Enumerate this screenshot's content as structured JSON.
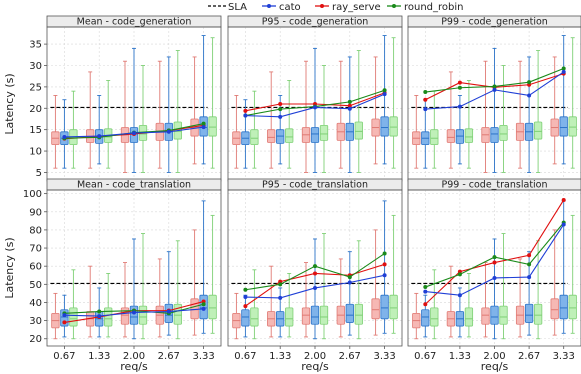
{
  "legend": [
    {
      "key": "sla",
      "label": "SLA",
      "color": "#000000",
      "dash": true
    },
    {
      "key": "cato",
      "label": "cato",
      "color": "#1f3fd6"
    },
    {
      "key": "ray_serve",
      "label": "ray_serve",
      "color": "#e01010"
    },
    {
      "key": "round_robin",
      "label": "round_robin",
      "color": "#1a8a1a"
    }
  ],
  "box_colors": {
    "ray_serve": {
      "fill": "#f6b8b4",
      "stroke": "#e07a74"
    },
    "cato": {
      "fill": "#7fb3ea",
      "stroke": "#2b73c8"
    },
    "round_robin": {
      "fill": "#bff0b8",
      "stroke": "#7fd076"
    }
  },
  "chart_data": [
    {
      "type": "line",
      "title": "Mean - code_generation",
      "ylabel": "Latency (s)",
      "xlabel": "",
      "ylim": [
        3,
        39
      ],
      "yticks": [
        5,
        10,
        15,
        20,
        25,
        30,
        35
      ],
      "categories": [
        "0.67",
        "1.33",
        "2.00",
        "2.67",
        "3.33"
      ],
      "sla": 20.2,
      "series": [
        {
          "name": "cato",
          "values": [
            13.3,
            13.5,
            14.2,
            14.5,
            15.6
          ]
        },
        {
          "name": "ray_serve",
          "values": [
            12.9,
            13.4,
            14.0,
            14.8,
            16.0
          ]
        },
        {
          "name": "round_robin",
          "values": [
            13.0,
            13.2,
            14.3,
            14.8,
            16.4
          ]
        }
      ],
      "boxes": {
        "ray_serve": [
          [
            6,
            11.5,
            13,
            14.5,
            23
          ],
          [
            6,
            12,
            13.2,
            15,
            28.5
          ],
          [
            5,
            12,
            13.8,
            15.5,
            31
          ],
          [
            6,
            12.5,
            14.5,
            16.5,
            31
          ],
          [
            7,
            13.5,
            15.5,
            17.5,
            32
          ]
        ],
        "cato": [
          [
            6,
            11.5,
            13,
            14.5,
            22
          ],
          [
            7,
            11.8,
            13.5,
            15,
            23
          ],
          [
            5,
            12,
            14,
            15.5,
            34
          ],
          [
            5,
            12.5,
            14.5,
            16.5,
            32
          ],
          [
            7,
            13.5,
            15.5,
            18,
            37
          ]
        ],
        "round_robin": [
          [
            6,
            11.5,
            13,
            15,
            24
          ],
          [
            6,
            12,
            13.3,
            15.2,
            26.5
          ],
          [
            5,
            12.5,
            14,
            16,
            30
          ],
          [
            5,
            12.8,
            14.6,
            16.8,
            33.5
          ],
          [
            6,
            13.5,
            15.6,
            18,
            36.5
          ]
        ]
      }
    },
    {
      "type": "line",
      "title": "P95 - code_generation",
      "ylabel": "",
      "xlabel": "",
      "ylim": [
        3,
        39
      ],
      "yticks": [
        5,
        10,
        15,
        20,
        25,
        30,
        35
      ],
      "categories": [
        "0.67",
        "1.33",
        "2.00",
        "2.67",
        "3.33"
      ],
      "sla": 20.2,
      "series": [
        {
          "name": "cato",
          "values": [
            18.3,
            18.0,
            20.2,
            19.9,
            23.3
          ]
        },
        {
          "name": "ray_serve",
          "values": [
            19.4,
            21.0,
            21.0,
            20.6,
            23.6
          ]
        },
        {
          "name": "round_robin",
          "values": [
            18.3,
            19.8,
            20.4,
            21.5,
            24.2
          ]
        }
      ],
      "boxes": {
        "ray_serve": [
          [
            6,
            11.5,
            13,
            14.5,
            23
          ],
          [
            6,
            12,
            13.2,
            15,
            28.5
          ],
          [
            5,
            12,
            13.8,
            15.5,
            31
          ],
          [
            6,
            12.5,
            14.5,
            16.5,
            31
          ],
          [
            7,
            13.5,
            15.5,
            17.5,
            32
          ]
        ],
        "cato": [
          [
            6,
            11.5,
            13,
            14.5,
            22
          ],
          [
            7,
            11.8,
            13.5,
            15,
            23
          ],
          [
            5,
            12,
            14,
            15.5,
            34
          ],
          [
            5,
            12.5,
            14.5,
            16.5,
            32
          ],
          [
            7,
            13.5,
            15.5,
            18,
            37
          ]
        ],
        "round_robin": [
          [
            6,
            11.5,
            13,
            15,
            24
          ],
          [
            6,
            12,
            13.3,
            15.2,
            26.5
          ],
          [
            5,
            12.5,
            14,
            16,
            30
          ],
          [
            5,
            12.8,
            14.6,
            16.8,
            33.5
          ],
          [
            6,
            13.5,
            15.6,
            18,
            36.5
          ]
        ]
      }
    },
    {
      "type": "line",
      "title": "P99 - code_generation",
      "ylabel": "",
      "xlabel": "",
      "ylim": [
        3,
        39
      ],
      "yticks": [
        5,
        10,
        15,
        20,
        25,
        30,
        35
      ],
      "categories": [
        "0.67",
        "1.33",
        "2.00",
        "2.67",
        "3.33"
      ],
      "sla": 20.2,
      "series": [
        {
          "name": "cato",
          "values": [
            19.8,
            20.4,
            24.3,
            23.0,
            28.5
          ]
        },
        {
          "name": "ray_serve",
          "values": [
            22.0,
            26.0,
            24.9,
            25.5,
            28.1
          ]
        },
        {
          "name": "round_robin",
          "values": [
            23.8,
            24.8,
            25.1,
            26.1,
            29.3
          ]
        }
      ],
      "boxes": {
        "ray_serve": [
          [
            6,
            11.5,
            13,
            14.5,
            23
          ],
          [
            6,
            12,
            13.2,
            15,
            28.5
          ],
          [
            5,
            12,
            13.8,
            15.5,
            31
          ],
          [
            6,
            12.5,
            14.5,
            16.5,
            31
          ],
          [
            7,
            13.5,
            15.5,
            17.5,
            32
          ]
        ],
        "cato": [
          [
            6,
            11.5,
            13,
            14.5,
            22
          ],
          [
            7,
            11.8,
            13.5,
            15,
            23
          ],
          [
            5,
            12,
            14,
            15.5,
            34
          ],
          [
            5,
            12.5,
            14.5,
            16.5,
            32
          ],
          [
            7,
            13.5,
            15.5,
            18,
            37
          ]
        ],
        "round_robin": [
          [
            6,
            11.5,
            13,
            15,
            24
          ],
          [
            6,
            12,
            13.3,
            15.2,
            26.5
          ],
          [
            5,
            12.5,
            14,
            16,
            30
          ],
          [
            5,
            12.8,
            14.6,
            16.8,
            33.5
          ],
          [
            6,
            13.5,
            15.6,
            18,
            36.5
          ]
        ]
      }
    },
    {
      "type": "line",
      "title": "Mean - code_translation",
      "ylabel": "Latency (s)",
      "xlabel": "req/s",
      "ylim": [
        16,
        102
      ],
      "yticks": [
        20,
        30,
        40,
        50,
        60,
        70,
        80,
        90,
        100
      ],
      "categories": [
        "0.67",
        "1.33",
        "2.00",
        "2.67",
        "3.33"
      ],
      "sla": 50.5,
      "series": [
        {
          "name": "cato",
          "values": [
            33.0,
            32.5,
            34.5,
            35.0,
            36.5
          ]
        },
        {
          "name": "ray_serve",
          "values": [
            29.0,
            32.0,
            35.5,
            35.5,
            40.5
          ]
        },
        {
          "name": "round_robin",
          "values": [
            34.0,
            35.0,
            35.5,
            34.0,
            39.0
          ]
        }
      ],
      "boxes": {
        "ray_serve": [
          [
            20,
            26,
            30,
            34,
            45
          ],
          [
            21,
            27,
            31,
            35,
            60
          ],
          [
            21,
            28,
            33,
            37,
            62
          ],
          [
            21,
            28,
            33,
            38,
            64
          ],
          [
            22,
            31,
            36,
            42,
            80
          ]
        ],
        "cato": [
          [
            21,
            27,
            32,
            36,
            44
          ],
          [
            21,
            27,
            31,
            35,
            48
          ],
          [
            20,
            28,
            32,
            38,
            75
          ],
          [
            22,
            29,
            33,
            39,
            68
          ],
          [
            23,
            31,
            37,
            44,
            96
          ]
        ],
        "round_robin": [
          [
            20,
            27,
            31,
            37,
            58
          ],
          [
            21,
            27,
            31,
            37,
            56
          ],
          [
            20,
            28,
            32,
            38,
            78
          ],
          [
            20,
            28,
            33,
            39,
            74
          ],
          [
            23,
            31,
            37,
            44,
            88
          ]
        ]
      }
    },
    {
      "type": "line",
      "title": "P95 - code_translation",
      "ylabel": "",
      "xlabel": "req/s",
      "ylim": [
        16,
        102
      ],
      "yticks": [
        20,
        30,
        40,
        50,
        60,
        70,
        80,
        90,
        100
      ],
      "categories": [
        "0.67",
        "1.33",
        "2.00",
        "2.67",
        "3.33"
      ],
      "sla": 50.5,
      "series": [
        {
          "name": "cato",
          "values": [
            43.0,
            42.5,
            48.0,
            51.0,
            55.0
          ]
        },
        {
          "name": "ray_serve",
          "values": [
            38.0,
            51.5,
            56.0,
            55.0,
            61.0
          ]
        },
        {
          "name": "round_robin",
          "values": [
            47.0,
            50.0,
            60.0,
            54.0,
            67.0
          ]
        }
      ],
      "boxes": {
        "ray_serve": [
          [
            20,
            26,
            30,
            34,
            45
          ],
          [
            21,
            27,
            31,
            35,
            60
          ],
          [
            21,
            28,
            33,
            37,
            62
          ],
          [
            21,
            28,
            33,
            38,
            64
          ],
          [
            22,
            31,
            36,
            42,
            80
          ]
        ],
        "cato": [
          [
            21,
            27,
            32,
            36,
            44
          ],
          [
            21,
            27,
            31,
            35,
            48
          ],
          [
            20,
            28,
            32,
            38,
            75
          ],
          [
            22,
            29,
            33,
            39,
            68
          ],
          [
            23,
            31,
            37,
            44,
            96
          ]
        ],
        "round_robin": [
          [
            20,
            27,
            31,
            37,
            58
          ],
          [
            21,
            27,
            31,
            37,
            56
          ],
          [
            20,
            28,
            32,
            38,
            78
          ],
          [
            20,
            28,
            33,
            39,
            74
          ],
          [
            23,
            31,
            37,
            44,
            88
          ]
        ]
      }
    },
    {
      "type": "line",
      "title": "P99 - code_translation",
      "ylabel": "",
      "xlabel": "req/s",
      "ylim": [
        16,
        102
      ],
      "yticks": [
        20,
        30,
        40,
        50,
        60,
        70,
        80,
        90,
        100
      ],
      "categories": [
        "0.67",
        "1.33",
        "2.00",
        "2.67",
        "3.33"
      ],
      "sla": 50.5,
      "series": [
        {
          "name": "cato",
          "values": [
            46.0,
            44.0,
            53.5,
            54.0,
            83.0
          ]
        },
        {
          "name": "ray_serve",
          "values": [
            39.0,
            57.0,
            62.0,
            66.0,
            96.5
          ]
        },
        {
          "name": "round_robin",
          "values": [
            48.5,
            55.5,
            65.0,
            61.0,
            84.0
          ]
        }
      ],
      "boxes": {
        "ray_serve": [
          [
            20,
            26,
            30,
            34,
            45
          ],
          [
            21,
            27,
            31,
            35,
            60
          ],
          [
            21,
            28,
            33,
            37,
            62
          ],
          [
            21,
            28,
            33,
            38,
            64
          ],
          [
            22,
            31,
            36,
            42,
            80
          ]
        ],
        "cato": [
          [
            21,
            27,
            32,
            36,
            44
          ],
          [
            21,
            27,
            31,
            35,
            48
          ],
          [
            20,
            28,
            32,
            38,
            75
          ],
          [
            22,
            29,
            33,
            39,
            68
          ],
          [
            23,
            31,
            37,
            44,
            96
          ]
        ],
        "round_robin": [
          [
            20,
            27,
            31,
            37,
            58
          ],
          [
            21,
            27,
            31,
            37,
            56
          ],
          [
            20,
            28,
            32,
            38,
            78
          ],
          [
            20,
            28,
            33,
            39,
            74
          ],
          [
            23,
            31,
            37,
            44,
            88
          ]
        ]
      }
    }
  ]
}
